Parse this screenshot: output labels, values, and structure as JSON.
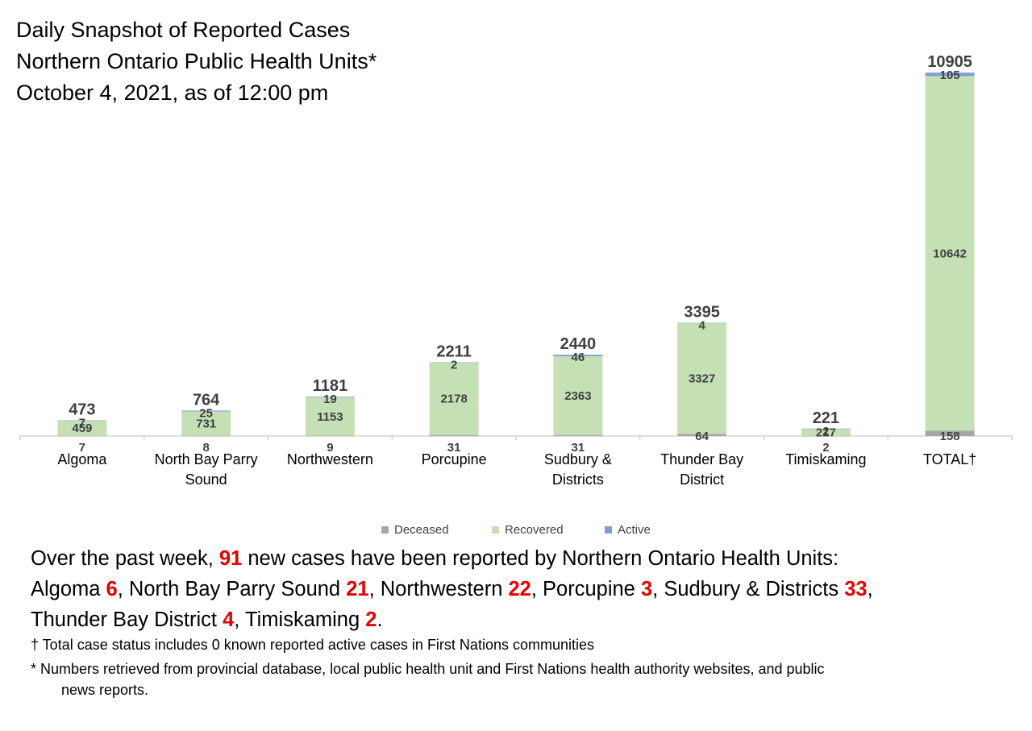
{
  "title_lines": [
    "Daily Snapshot of Reported Cases",
    "Northern Ontario Public Health Units*",
    "October 4, 2021, as of 12:00 pm"
  ],
  "colors": {
    "deceased": "#a6a6a6",
    "recovered": "#c5e0b4",
    "active": "#7f9fd4",
    "highlight": "#e00000"
  },
  "chart_data": {
    "type": "bar",
    "stacked": true,
    "categories": [
      [
        "Algoma"
      ],
      [
        "North Bay Parry",
        "Sound"
      ],
      [
        "Northwestern"
      ],
      [
        "Porcupine"
      ],
      [
        "Sudbury &",
        "Districts"
      ],
      [
        "Thunder Bay",
        "District"
      ],
      [
        "Timiskaming"
      ],
      [
        "TOTAL†"
      ]
    ],
    "series": [
      {
        "name": "Deceased",
        "values": [
          7,
          8,
          9,
          31,
          31,
          64,
          2,
          158
        ]
      },
      {
        "name": "Recovered",
        "values": [
          459,
          731,
          1153,
          2178,
          2363,
          3327,
          217,
          10642
        ]
      },
      {
        "name": "Active",
        "values": [
          7,
          25,
          19,
          2,
          46,
          4,
          2,
          105
        ]
      }
    ],
    "totals": [
      473,
      764,
      1181,
      2211,
      2440,
      3395,
      221,
      10905
    ],
    "ylim": [
      0,
      11100
    ],
    "grid": false,
    "legend_position": "bottom"
  },
  "summary": {
    "p1": "Over the past week, ",
    "total_new": "91",
    "p2": " new cases have been reported by Northern Ontario Health Units:",
    "items": [
      {
        "label": "Algoma ",
        "value": "6",
        "sep": ", "
      },
      {
        "label": "North Bay Parry Sound ",
        "value": "21",
        "sep": ", "
      },
      {
        "label": "Northwestern ",
        "value": "22",
        "sep": ", "
      },
      {
        "label": "Porcupine ",
        "value": "3",
        "sep": ", "
      },
      {
        "label": "Sudbury & Districts ",
        "value": "33",
        "sep": ", "
      },
      {
        "label": "Thunder Bay District ",
        "value": "4",
        "sep": ", "
      },
      {
        "label": "Timiskaming ",
        "value": "2",
        "sep": "."
      }
    ]
  },
  "footnotes": {
    "dagger": "† Total case status includes 0 known reported active cases in First Nations communities",
    "asterisk_1": "* Numbers retrieved from provincial database, local public health unit and First Nations health authority websites, and public",
    "asterisk_2": "news reports."
  }
}
